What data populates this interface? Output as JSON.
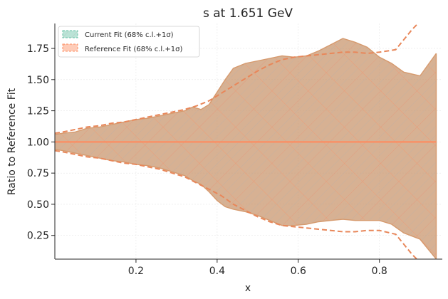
{
  "chart_data": {
    "type": "area",
    "title": "s at 1.651 GeV",
    "xlabel": "x",
    "ylabel": "Ratio to Reference Fit",
    "xlim": [
      0.0,
      0.955
    ],
    "ylim": [
      0.06,
      1.95
    ],
    "xticks": [
      0.2,
      0.4,
      0.6,
      0.8
    ],
    "xtick_labels": [
      "0.2",
      "0.4",
      "0.6",
      "0.8"
    ],
    "yticks": [
      0.25,
      0.5,
      0.75,
      1.0,
      1.25,
      1.5,
      1.75
    ],
    "ytick_labels": [
      "0.25",
      "0.50",
      "0.75",
      "1.00",
      "1.25",
      "1.50",
      "1.75"
    ],
    "grid": true,
    "legend_position": "top-left",
    "series": [
      {
        "name": "Current Fit (68% c.l.+1σ)",
        "color": "#66c2a5",
        "hatch": "diagonal",
        "x": [
          0.0,
          0.02,
          0.05,
          0.08,
          0.11,
          0.14,
          0.17,
          0.2,
          0.23,
          0.26,
          0.29,
          0.32,
          0.34,
          0.36,
          0.38,
          0.4,
          0.42,
          0.44,
          0.47,
          0.5,
          0.53,
          0.56,
          0.59,
          0.62,
          0.65,
          0.68,
          0.71,
          0.74,
          0.77,
          0.8,
          0.83,
          0.86,
          0.9,
          0.94
        ],
        "upper": [
          1.06,
          1.07,
          1.08,
          1.11,
          1.12,
          1.14,
          1.16,
          1.18,
          1.19,
          1.21,
          1.23,
          1.25,
          1.28,
          1.26,
          1.3,
          1.4,
          1.5,
          1.59,
          1.63,
          1.65,
          1.67,
          1.69,
          1.68,
          1.69,
          1.73,
          1.78,
          1.83,
          1.8,
          1.76,
          1.68,
          1.63,
          1.56,
          1.53,
          1.71
        ],
        "lower": [
          0.94,
          0.93,
          0.91,
          0.89,
          0.87,
          0.85,
          0.84,
          0.82,
          0.81,
          0.79,
          0.76,
          0.73,
          0.69,
          0.66,
          0.6,
          0.53,
          0.48,
          0.46,
          0.44,
          0.41,
          0.37,
          0.33,
          0.33,
          0.34,
          0.36,
          0.37,
          0.38,
          0.37,
          0.37,
          0.37,
          0.34,
          0.27,
          0.22,
          0.06
        ]
      },
      {
        "name": "Reference Fit (68% c.l.+1σ)",
        "color": "#fc8d62",
        "hatch": "crosshatch",
        "central": 1.0,
        "x": [
          0.0,
          0.02,
          0.05,
          0.08,
          0.11,
          0.14,
          0.17,
          0.2,
          0.23,
          0.26,
          0.29,
          0.32,
          0.35,
          0.38,
          0.41,
          0.44,
          0.47,
          0.5,
          0.53,
          0.56,
          0.59,
          0.62,
          0.65,
          0.68,
          0.71,
          0.74,
          0.77,
          0.8,
          0.84,
          0.88,
          0.91
        ],
        "upper": [
          1.07,
          1.08,
          1.1,
          1.12,
          1.13,
          1.15,
          1.16,
          1.18,
          1.2,
          1.22,
          1.24,
          1.26,
          1.29,
          1.33,
          1.39,
          1.45,
          1.51,
          1.57,
          1.62,
          1.66,
          1.68,
          1.69,
          1.7,
          1.71,
          1.72,
          1.72,
          1.71,
          1.72,
          1.74,
          1.9,
          2.0
        ],
        "lower": [
          0.93,
          0.92,
          0.9,
          0.88,
          0.87,
          0.85,
          0.83,
          0.82,
          0.8,
          0.78,
          0.75,
          0.72,
          0.67,
          0.62,
          0.57,
          0.5,
          0.45,
          0.4,
          0.36,
          0.33,
          0.32,
          0.31,
          0.3,
          0.29,
          0.28,
          0.28,
          0.29,
          0.29,
          0.26,
          0.1,
          0.0
        ]
      }
    ]
  }
}
